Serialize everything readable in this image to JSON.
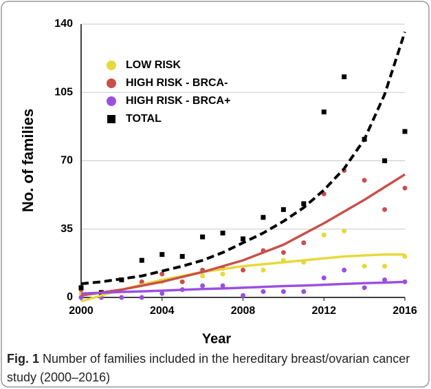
{
  "chart_data": {
    "type": "scatter",
    "y_label": "No. of families",
    "x_label": "Year",
    "x": [
      2000,
      2001,
      2002,
      2003,
      2004,
      2005,
      2006,
      2007,
      2008,
      2009,
      2010,
      2011,
      2012,
      2013,
      2014,
      2015,
      2016
    ],
    "xlim": [
      2000,
      2016
    ],
    "xticks": [
      2000,
      2004,
      2008,
      2012,
      2016
    ],
    "ylim": [
      0,
      140
    ],
    "yticks": [
      0,
      35,
      70,
      105,
      140
    ],
    "grid": true,
    "legend": "upper-left",
    "series": [
      {
        "name": "LOW RISK",
        "color": "#e6d93a",
        "marker": "circle",
        "values": [
          2,
          1,
          0,
          7,
          8,
          8,
          11,
          12,
          14,
          14,
          19,
          18,
          32,
          34,
          16,
          16,
          21
        ],
        "trend": [
          -2,
          1,
          4,
          6.5,
          9,
          11,
          13,
          14.5,
          16,
          17,
          18,
          19,
          20,
          21,
          21.5,
          22,
          22
        ],
        "trend_style": "solid"
      },
      {
        "name": "HIGH RISK - BRCA-",
        "color": "#c9504a",
        "marker": "circle",
        "values": [
          4,
          1,
          9,
          8,
          12,
          8,
          14,
          15,
          14,
          24,
          23,
          28,
          53,
          65,
          60,
          45,
          56
        ],
        "trend": [
          1,
          2.5,
          4,
          6,
          8,
          10.5,
          13,
          16,
          19,
          23,
          27,
          32.5,
          38,
          44,
          50,
          56.5,
          63
        ],
        "trend_style": "solid"
      },
      {
        "name": "HIGH RISK - BRCA+",
        "color": "#9b4fe0",
        "marker": "circle",
        "values": [
          0,
          0,
          0,
          0,
          2,
          4,
          6,
          6,
          1,
          3,
          3,
          3,
          10,
          14,
          5,
          9,
          8
        ],
        "trend": [
          2,
          2.4,
          2.8,
          3.1,
          3.5,
          3.9,
          4.3,
          4.6,
          5,
          5.4,
          5.8,
          6.1,
          6.5,
          6.9,
          7.3,
          7.6,
          8
        ],
        "trend_style": "solid"
      },
      {
        "name": "TOTAL",
        "color": "#000000",
        "marker": "square",
        "values": [
          5,
          2.5,
          9,
          19,
          22,
          21,
          31,
          33,
          30,
          41,
          45,
          48,
          95,
          113,
          81,
          70,
          85
        ],
        "trend": [
          7,
          8,
          9.5,
          11,
          13.5,
          16,
          19,
          23,
          28,
          33,
          39,
          46,
          55,
          66,
          81,
          104,
          136
        ],
        "trend_style": "dashed"
      }
    ],
    "caption": {
      "label": "Fig. 1",
      "text": "Number of families included in the hereditary breast/ovarian cancer study (2000–2016)"
    }
  }
}
